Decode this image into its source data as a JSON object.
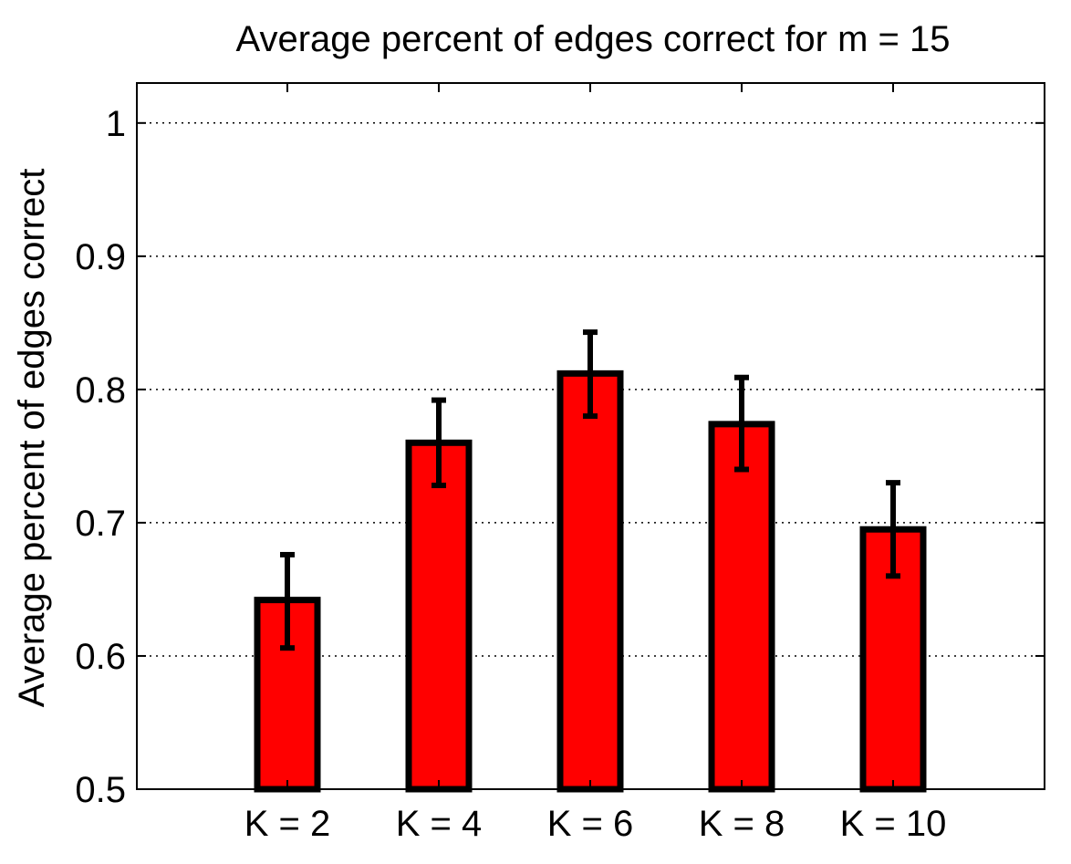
{
  "chart_data": {
    "type": "bar",
    "title": "Average percent of edges correct for m = 15",
    "xlabel": "",
    "ylabel": "Average percent of edges correct",
    "categories": [
      "K = 2",
      "K = 4",
      "K = 6",
      "K = 8",
      "K = 10"
    ],
    "values": [
      0.642,
      0.76,
      0.812,
      0.774,
      0.695
    ],
    "error_low": [
      0.606,
      0.728,
      0.78,
      0.74,
      0.66
    ],
    "error_high": [
      0.676,
      0.792,
      0.843,
      0.809,
      0.73
    ],
    "ylim": [
      0.5,
      1.03
    ],
    "yticks": [
      0.5,
      0.6,
      0.7,
      0.8,
      0.9,
      1.0
    ],
    "ytick_labels": [
      "0.5",
      "0.6",
      "0.7",
      "0.8",
      "0.9",
      "1"
    ],
    "grid": "horizontal dotted",
    "legend": "none",
    "colors": {
      "bar_fill": "#ff0000",
      "bar_stroke": "#000000",
      "error_bar": "#000000",
      "grid": "#000000",
      "axis": "#000000"
    }
  }
}
